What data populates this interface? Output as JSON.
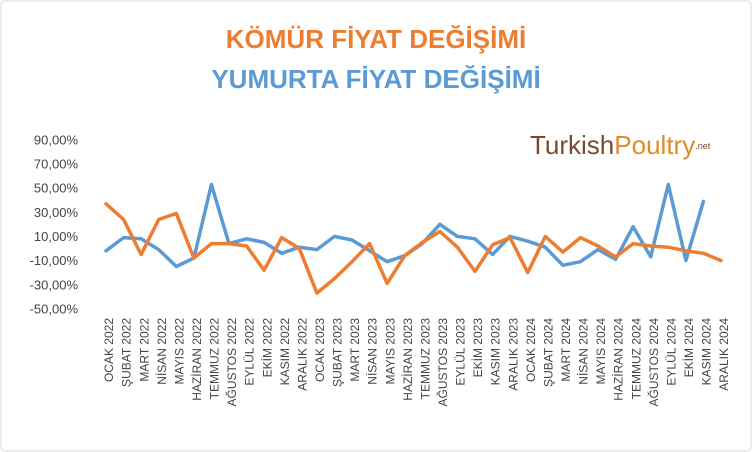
{
  "chart_data": {
    "type": "line",
    "logo": {
      "first": "Turkish",
      "second": "Poultry",
      "suffix": ".net"
    },
    "categories": [
      "OCAK 2022",
      "ŞUBAT 2022",
      "MART 2022",
      "NİSAN 2022",
      "MAYIS 2022",
      "HAZİRAN 2022",
      "TEMMUZ 2022",
      "AĞUSTOS 2022",
      "EYLÜL 2022",
      "EKİM 2022",
      "KASIM 2022",
      "ARALIK 2022",
      "OCAK 2023",
      "ŞUBAT 2023",
      "MART 2023",
      "NİSAN 2023",
      "MAYIS 2023",
      "HAZİRAN 2023",
      "TEMMUZ 2023",
      "AĞUSTOS 2023",
      "EYLÜL 2023",
      "EKİM 2023",
      "KASIM 2023",
      "ARALIK 2023",
      "OCAK 2024",
      "ŞUBAT 2024",
      "MART 2024",
      "NİSAN 2024",
      "MAYIS 2024",
      "HAZİRAN 2024",
      "TEMMUZ 2024",
      "AĞUSTOS 2024",
      "EYLÜL 2024",
      "EKİM 2024",
      "KASIM 2024",
      "ARALIK 2024"
    ],
    "series": [
      {
        "name": "KÖMÜR FİYAT DEĞİŞİMİ",
        "color": "#ed7d31",
        "values": [
          38,
          25,
          -4,
          25,
          30,
          -7,
          5,
          5,
          3,
          -17,
          10,
          1,
          -36,
          -24,
          -10,
          5,
          -28,
          -5,
          6,
          15,
          2,
          -18,
          4,
          10,
          -19,
          11,
          -2,
          10,
          3,
          -6,
          5,
          3,
          2,
          -1,
          -3,
          -9
        ]
      },
      {
        "name": "YUMURTA FİYAT DEĞİŞİMİ",
        "color": "#5b9bd5",
        "values": [
          -1,
          10,
          9,
          0,
          -14,
          -7,
          54,
          5,
          9,
          6,
          -3,
          2,
          0,
          11,
          8,
          -1,
          -10,
          -5,
          5,
          21,
          11,
          9,
          -4,
          11,
          7,
          2,
          -13,
          -10,
          0,
          -8,
          19,
          -6,
          54,
          -9,
          40,
          null
        ]
      }
    ],
    "ylim": [
      -50,
      90
    ],
    "yticks": [
      {
        "value": 90,
        "label": "90,00%"
      },
      {
        "value": 70,
        "label": "70,00%"
      },
      {
        "value": 50,
        "label": "50,00%"
      },
      {
        "value": 30,
        "label": "30,00%"
      },
      {
        "value": 10,
        "label": "10,00%"
      },
      {
        "value": -10,
        "label": "-10,00%"
      },
      {
        "value": -30,
        "label": "-30,00%"
      },
      {
        "value": -50,
        "label": "-50,00%"
      }
    ],
    "grid": false
  }
}
